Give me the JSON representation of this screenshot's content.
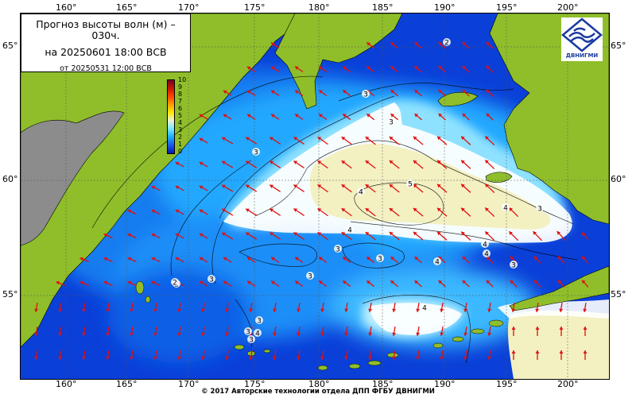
{
  "title": {
    "line1": "Прогноз высоты волн (м) –",
    "line1b": "030ч.",
    "line2": "на 20250601 18:00 ВСВ",
    "line3": "от 20250531 12:00 ВСВ"
  },
  "lon_ticks": [
    "160°",
    "165°",
    "170°",
    "175°",
    "180°",
    "185°",
    "190°",
    "195°",
    "200°"
  ],
  "lat_ticks": [
    "65°",
    "60°",
    "55°"
  ],
  "colorbar": {
    "labels": [
      "10",
      "9",
      "8",
      "7",
      "6",
      "5",
      "4",
      "3",
      "2",
      "1",
      "0"
    ]
  },
  "contour_labels": [
    "2",
    "3",
    "3",
    "3",
    "4",
    "5",
    "4",
    "3",
    "3",
    "3",
    "4",
    "4",
    "4",
    "3",
    "3",
    "3",
    "4",
    "4",
    "3",
    "2",
    "3",
    "4",
    "3",
    "2"
  ],
  "logo_text": "ДВНИГМИ",
  "copyright": "© 2017 Авторские технологии отдела ДПП ФГБУ ДВНИГМИ",
  "colors": {
    "land": "#8fbe2a",
    "sea_deep": "#0a3fd8",
    "sea_mid": "#1e9cff",
    "calm_white": "#ffffff",
    "high": "#f3f0c2",
    "arrow": "#e01010",
    "ice": "#8c8c8c"
  }
}
